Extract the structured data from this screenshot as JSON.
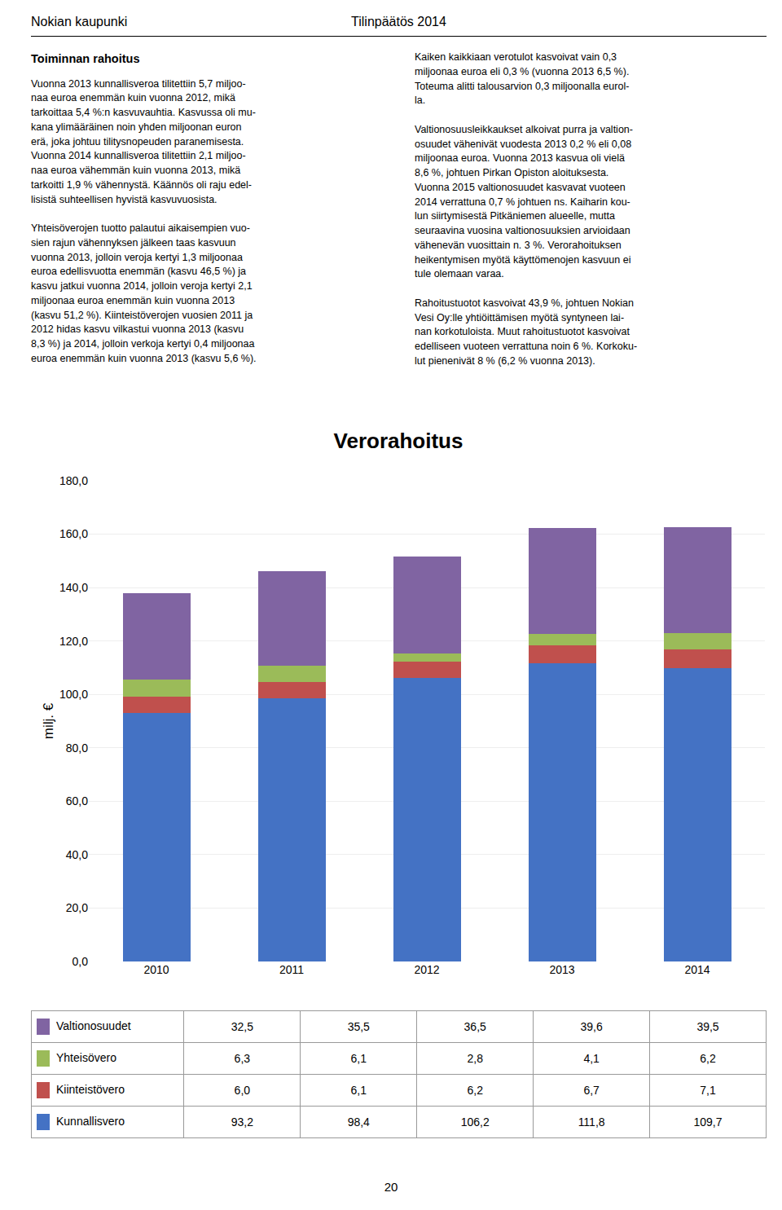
{
  "chart_data": {
    "type": "bar",
    "title": "Verorahoitus",
    "ylabel": "milj. €",
    "categories": [
      "2010",
      "2011",
      "2012",
      "2013",
      "2014"
    ],
    "series": [
      {
        "name": "Kunnallisvero",
        "color": "#4472C4",
        "values": [
          93.2,
          98.4,
          106.2,
          111.8,
          109.7
        ],
        "value_labels": [
          "93,2",
          "98,4",
          "106,2",
          "111,8",
          "109,7"
        ]
      },
      {
        "name": "Kiinteistövero",
        "color": "#C0504D",
        "values": [
          6.0,
          6.1,
          6.2,
          6.7,
          7.1
        ],
        "value_labels": [
          "6,0",
          "6,1",
          "6,2",
          "6,7",
          "7,1"
        ]
      },
      {
        "name": "Yhteisövero",
        "color": "#9BBB59",
        "values": [
          6.3,
          6.1,
          2.8,
          4.1,
          6.2
        ],
        "value_labels": [
          "6,3",
          "6,1",
          "2,8",
          "4,1",
          "6,2"
        ]
      },
      {
        "name": "Valtionosuudet",
        "color": "#8064A2",
        "values": [
          32.5,
          35.5,
          36.5,
          39.6,
          39.5
        ],
        "value_labels": [
          "32,5",
          "35,5",
          "36,5",
          "39,6",
          "39,5"
        ]
      }
    ],
    "stacked": true,
    "ylim": [
      0,
      180
    ],
    "yticks": [
      {
        "value": 0,
        "label": "0,0"
      },
      {
        "value": 20,
        "label": "20,0"
      },
      {
        "value": 40,
        "label": "40,0"
      },
      {
        "value": 60,
        "label": "60,0"
      },
      {
        "value": 80,
        "label": "80,0"
      },
      {
        "value": 100,
        "label": "100,0"
      },
      {
        "value": 120,
        "label": "120,0"
      },
      {
        "value": 140,
        "label": "140,0"
      },
      {
        "value": 160,
        "label": "160,0"
      },
      {
        "value": 180,
        "label": "180,0"
      }
    ],
    "grid": true,
    "legend": "bottom",
    "annotations": [
      "Nokian kaupunki",
      "Tilinpäätös 2014",
      "Toiminnan rahoitus",
      "Vuonna 2013 kunnallisveroa tilitettiin 5,7 miljoo-\nnaa euroa enemmän kuin vuonna 2012, mikä\ntarkoittaa 5,4 %:n kasvuvauhtia. Kasvussa oli mu-\nkana ylimääräinen noin yhden miljoonan euron\nerä, joka johtuu tilitysnopeuden paranemisesta.\nVuonna 2014 kunnallisveroa tilitettiin 2,1 miljoo-\nnaa euroa vähemmän kuin vuonna 2013, mikä\ntarkoitti 1,9 % vähennystä. Käännös oli raju edel-\nlisistä suhteellisen hyvistä kasvuvuosista.\n\nYhteisöverojen tuotto palautui aikaisempien vuo-\nsien rajun vähennyksen jälkeen taas kasvuun\nvuonna 2013, jolloin veroja kertyi 1,3 miljoonaa\neuroa edellisvuotta enemmän (kasvu 46,5 %) ja\nkasvu jatkui vuonna 2014, jolloin veroja kertyi 2,1\nmiljoonaa euroa enemmän kuin vuonna 2013\n(kasvu 51,2 %). Kiinteistöverojen vuosien 2011 ja\n2012 hidas kasvu vilkastui vuonna 2013 (kasvu\n8,3 %) ja 2014, jolloin verkoja kertyi 0,4 miljoonaa\neuroa enemmän kuin vuonna 2013 (kasvu 5,6 %).",
      "Kaiken kaikkiaan verotulot kasvoivat vain 0,3\nmiljoonaa euroa eli 0,3 % (vuonna 2013 6,5 %).\nToteuma alitti talousarvion 0,3 miljoonalla eurol-\nla.\n\nValtionosuusleikkaukset alkoivat purra ja valtion-\nosuudet vähenivät vuodesta 2013 0,2 % eli 0,08\nmiljoonaa euroa. Vuonna 2013 kasvua oli vielä\n8,6 %, johtuen Pirkan Opiston aloituksesta.\nVuonna 2015 valtionosuudet kasvavat vuoteen\n2014 verrattuna 0,7 % johtuen ns. Kaiharin kou-\nlun siirtymisestä Pitkäniemen alueelle, mutta\nseuraavina vuosina valtionosuuksien arvioidaan\nvähenevän vuosittain n. 3 %. Verorahoituksen\nheikentymisen myötä käyttömenojen kasvuun ei\ntule olemaan varaa.\n\nRahoitustuotot kasvoivat 43,9 %, johtuen Nokian\nVesi Oy:lle yhtiöittämisen myötä syntyneen lai-\nnan korkotuloista. Muut rahoitustuotot kasvoivat\nedelliseen vuoteen verrattuna noin 6 %. Korkoku-\nlut pienenivät 8 % (6,2 % vuonna 2013).",
      "20"
    ]
  }
}
